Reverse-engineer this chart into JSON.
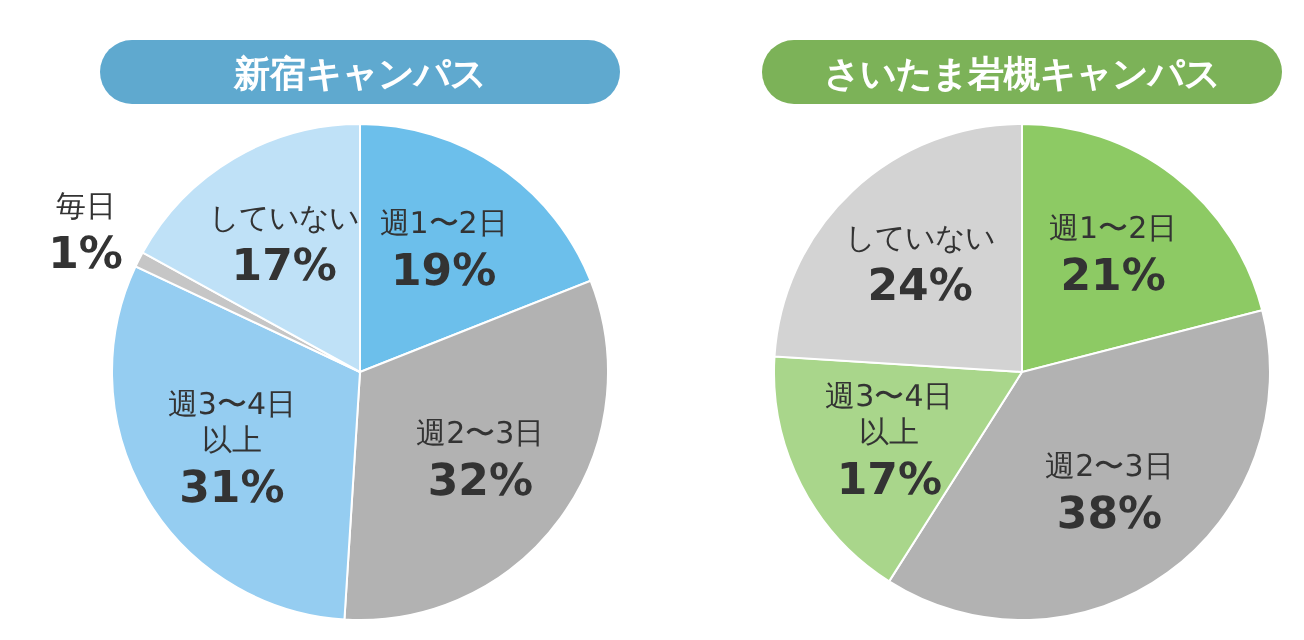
{
  "chart_data": [
    {
      "type": "pie",
      "title": "新宿キャンパス",
      "categories": [
        "週1〜2日",
        "週2〜3日",
        "週3〜4日以上",
        "毎日",
        "していない"
      ],
      "values": [
        19,
        32,
        31,
        1,
        17
      ],
      "value_labels": [
        "19%",
        "32%",
        "31%",
        "1%",
        "17%"
      ],
      "colors": [
        "#6cbfeb",
        "#b2b2b2",
        "#95cdf1",
        "#c6c6c6",
        "#bfe1f7"
      ]
    },
    {
      "type": "pie",
      "title": "さいたま岩槻キャンパス",
      "categories": [
        "週1〜2日",
        "週2〜3日",
        "週3〜4日以上",
        "していない"
      ],
      "values": [
        21,
        38,
        17,
        24
      ],
      "value_labels": [
        "21%",
        "38%",
        "17%",
        "24%"
      ],
      "colors": [
        "#8dca64",
        "#b2b2b2",
        "#a9d68b",
        "#d3d3d3"
      ]
    }
  ]
}
